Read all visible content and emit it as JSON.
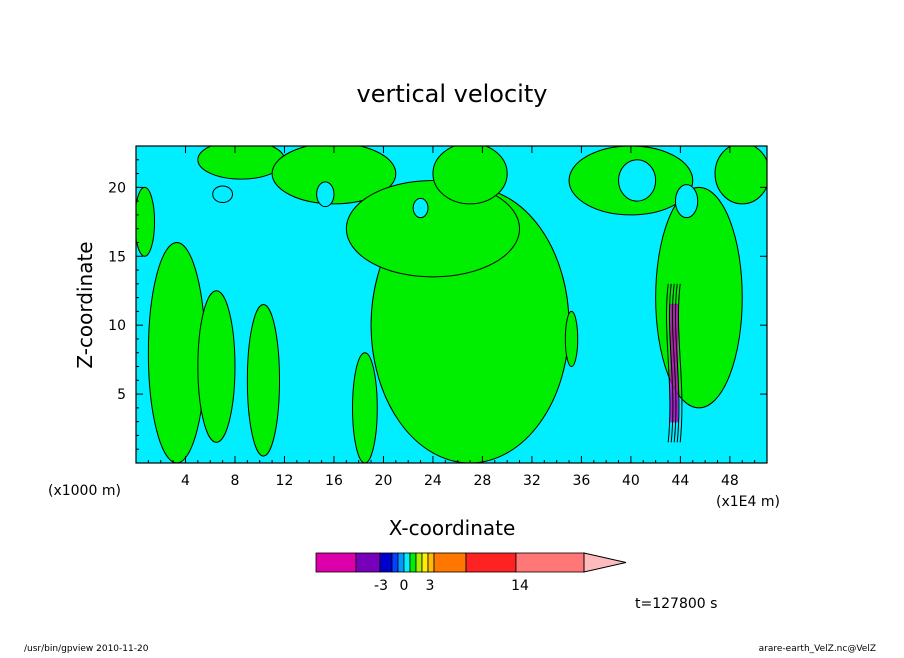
{
  "chart_data": {
    "type": "contour",
    "title": "vertical velocity",
    "xlabel": "X-coordinate",
    "ylabel": "Z-coordinate",
    "x_unit_left": "(x1000 m)",
    "x_unit_right": "(x1E4 m)",
    "xlim": [
      0,
      51
    ],
    "ylim": [
      0,
      23
    ],
    "x_ticks": [
      "4",
      "8",
      "12",
      "16",
      "20",
      "24",
      "28",
      "32",
      "36",
      "40",
      "44",
      "48"
    ],
    "x_tick_values": [
      4,
      8,
      12,
      16,
      20,
      24,
      28,
      32,
      36,
      40,
      44,
      48
    ],
    "y_ticks": [
      "5",
      "10",
      "15",
      "20"
    ],
    "y_tick_values": [
      5,
      10,
      15,
      20
    ],
    "colors": {
      "background": "#00eeff",
      "updraft": "#00ee00",
      "contour_line": "#000000",
      "downdraft_core": "#c800c8"
    },
    "updraft_regions": [
      {
        "label": "left-edge",
        "cx": 0.7,
        "cz": 17.5,
        "rx": 0.8,
        "rz": 2.5
      },
      {
        "label": "left-column",
        "cx": 3.3,
        "cz": 8,
        "rx": 2.3,
        "rz": 8
      },
      {
        "label": "plume-8",
        "cx": 6.5,
        "cz": 7,
        "rx": 1.5,
        "rz": 5.5
      },
      {
        "label": "plume-10",
        "cx": 10.3,
        "cz": 6,
        "rx": 1.3,
        "rz": 5.5
      },
      {
        "label": "top-left",
        "cx": 8.5,
        "cz": 22,
        "rx": 3.5,
        "rz": 1.4
      },
      {
        "label": "top-center",
        "cx": 16,
        "cz": 21,
        "rx": 5,
        "rz": 2.2
      },
      {
        "label": "central-mass",
        "cx": 27,
        "cz": 10,
        "rx": 8,
        "rz": 10
      },
      {
        "label": "upper-central",
        "cx": 24,
        "cz": 17,
        "rx": 7,
        "rz": 3.5
      },
      {
        "label": "top-right-central",
        "cx": 27,
        "cz": 21,
        "rx": 3,
        "rz": 2.2
      },
      {
        "label": "plume-19",
        "cx": 18.5,
        "cz": 4,
        "rx": 1,
        "rz": 4
      },
      {
        "label": "small-40",
        "cx": 35.2,
        "cz": 9,
        "rx": 0.5,
        "rz": 2
      },
      {
        "label": "right-top",
        "cx": 40,
        "cz": 20.5,
        "rx": 5,
        "rz": 2.5
      },
      {
        "label": "right-column",
        "cx": 45.5,
        "cz": 12,
        "rx": 3.5,
        "rz": 8
      },
      {
        "label": "top-right-edge",
        "cx": 49,
        "cz": 21,
        "rx": 2.2,
        "rz": 2.2
      }
    ],
    "cyan_holes": [
      {
        "cx": 7,
        "cz": 19.5,
        "rx": 0.8,
        "rz": 0.6
      },
      {
        "cx": 15.3,
        "cz": 19.5,
        "rx": 0.7,
        "rz": 0.9
      },
      {
        "cx": 23,
        "cz": 18.5,
        "rx": 0.6,
        "rz": 0.7
      },
      {
        "cx": 40.5,
        "cz": 20.5,
        "rx": 1.5,
        "rz": 1.5
      },
      {
        "cx": 44.5,
        "cz": 19,
        "rx": 0.9,
        "rz": 1.2
      }
    ],
    "downdraft_core": {
      "x": 43.5,
      "z_top": 13,
      "z_bottom": 1.5
    }
  },
  "colorbar": {
    "labels": [
      "-3",
      "0",
      "3",
      "14"
    ],
    "label_values": [
      -3,
      0,
      3,
      14
    ],
    "segments": [
      {
        "color": "#dd00aa"
      },
      {
        "color": "#7700bb"
      },
      {
        "color": "#0000cc"
      },
      {
        "color": "#0044ff"
      },
      {
        "color": "#0099ff"
      },
      {
        "color": "#00eeff"
      },
      {
        "color": "#00ee00"
      },
      {
        "color": "#aaee00"
      },
      {
        "color": "#ffee00"
      },
      {
        "color": "#ffbb00"
      },
      {
        "color": "#ff7700"
      },
      {
        "color": "#ff2222"
      },
      {
        "color": "#ff7777"
      },
      {
        "color": "#ffbbbb"
      }
    ]
  },
  "time_label": "t=127800 s",
  "footer": {
    "left": "/usr/bin/gpview   2010-11-20",
    "right": "arare-earth_VelZ.nc@VelZ"
  }
}
